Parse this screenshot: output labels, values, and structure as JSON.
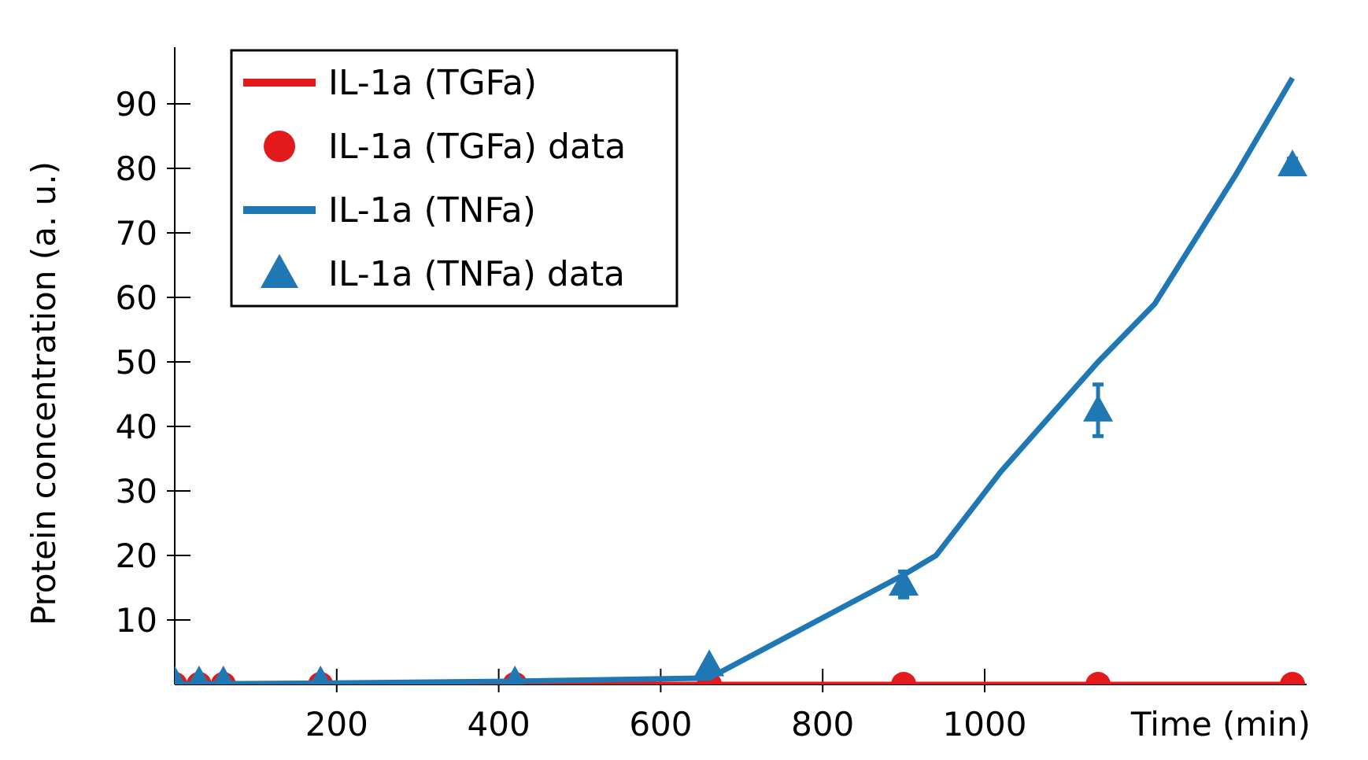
{
  "chart_data": {
    "type": "line",
    "xlabel": "Time (min)",
    "ylabel": "Protein concentration (a. u.)",
    "xlim": [
      0,
      1400
    ],
    "ylim": [
      0,
      98
    ],
    "x_ticks": [
      200,
      400,
      600,
      800,
      1000
    ],
    "y_ticks": [
      10,
      20,
      30,
      40,
      50,
      60,
      70,
      80,
      90
    ],
    "grid": false,
    "legend_position": "top-left",
    "series": [
      {
        "name": "IL-1a (TGFa)",
        "kind": "line",
        "color": "#e31a1c",
        "x": [
          0,
          30,
          60,
          180,
          420,
          660,
          900,
          1140,
          1380
        ],
        "y": [
          0,
          0,
          0,
          0,
          0,
          0,
          0,
          0,
          0
        ]
      },
      {
        "name": "IL-1a (TGFa) data",
        "kind": "marker",
        "marker": "circle",
        "color": "#e31a1c",
        "x": [
          0,
          30,
          60,
          180,
          420,
          660,
          900,
          1140,
          1380
        ],
        "y": [
          0,
          0,
          0,
          0,
          0,
          0,
          0,
          0,
          0
        ]
      },
      {
        "name": "IL-1a (TNFa)",
        "kind": "line",
        "color": "#1f78b4",
        "x": [
          0,
          30,
          60,
          180,
          420,
          660,
          900,
          940,
          1020,
          1140,
          1210,
          1310,
          1380
        ],
        "y": [
          0,
          0.05,
          0.1,
          0.2,
          0.5,
          1,
          17,
          20,
          33,
          50,
          59,
          79,
          94
        ]
      },
      {
        "name": "IL-1a (TNFa) data",
        "kind": "marker",
        "marker": "triangle",
        "color": "#1f78b4",
        "x": [
          0,
          30,
          60,
          180,
          420,
          660,
          900,
          1140,
          1380
        ],
        "y": [
          0.5,
          0.5,
          0.5,
          0.5,
          0.5,
          3,
          15.5,
          42.5,
          80.5
        ],
        "err": [
          0,
          0,
          0,
          0,
          0,
          0,
          2,
          4,
          1
        ]
      }
    ]
  }
}
